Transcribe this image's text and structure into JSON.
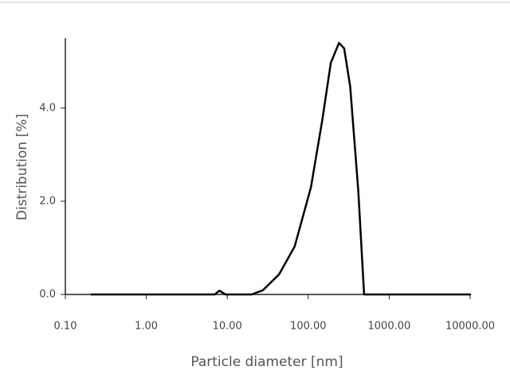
{
  "chart_data": {
    "type": "line",
    "x_label": "Particle diameter [nm]",
    "y_label": "Distribution [%]",
    "xscale": "log",
    "xlim": [
      0.1,
      10000
    ],
    "xticks": [
      {
        "value": 0.1,
        "label": "0.10"
      },
      {
        "value": 1,
        "label": "1.00"
      },
      {
        "value": 10,
        "label": "10.00"
      },
      {
        "value": 100,
        "label": "100.00"
      },
      {
        "value": 1000,
        "label": "1000.00"
      },
      {
        "value": 10000,
        "label": "10000.00"
      }
    ],
    "ylim": [
      0,
      5.5
    ],
    "yticks": [
      {
        "value": 0,
        "label": "0.0"
      },
      {
        "value": 2,
        "label": "2.0"
      },
      {
        "value": 4,
        "label": "4.0"
      }
    ],
    "x": [
      0.21,
      7,
      8,
      9.5,
      20,
      27.5,
      43.6,
      68,
      108,
      150,
      190,
      240,
      278,
      330,
      415,
      490,
      10000
    ],
    "series": [
      {
        "color": "#000000",
        "values": [
          0,
          0,
          0.08,
          0,
          0,
          0.09,
          0.43,
          1.03,
          2.3,
          3.77,
          4.97,
          5.4,
          5.28,
          4.46,
          2.23,
          0,
          0
        ]
      }
    ]
  }
}
